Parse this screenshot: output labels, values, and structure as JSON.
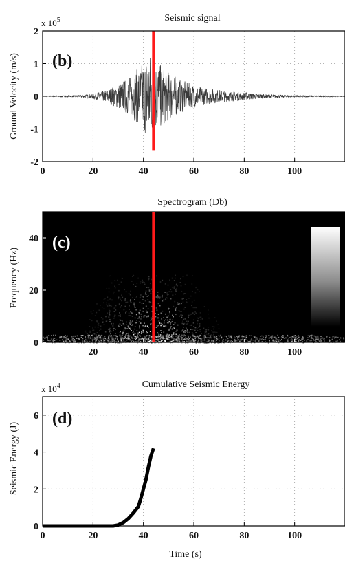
{
  "figure": {
    "colors": {
      "marker": "#ff1a1a",
      "signal": "#3a3a3a",
      "energy": "#000000",
      "axes": "#000000"
    }
  },
  "chart_data": [
    {
      "type": "line",
      "panel": "(b)",
      "title": "Seismic signal",
      "ylabel": "Ground Velocity (m/s)",
      "xlabel": "",
      "multiplier": {
        "base": "x 10",
        "exponent": "5"
      },
      "xlim": [
        0,
        120
      ],
      "ylim": [
        -2,
        2
      ],
      "xticks": [
        0,
        20,
        40,
        60,
        80,
        100
      ],
      "yticks": [
        -2,
        -1,
        0,
        1,
        2
      ],
      "grid": "dotted",
      "marker_x": 44,
      "envelope": {
        "x": [
          0,
          15,
          20,
          25,
          30,
          35,
          40,
          42,
          45,
          50,
          55,
          60,
          65,
          70,
          75,
          80,
          85,
          90,
          95,
          100,
          110,
          120
        ],
        "amplitude": [
          0.01,
          0.03,
          0.08,
          0.18,
          0.38,
          0.62,
          1.05,
          1.4,
          1.1,
          0.75,
          0.5,
          0.35,
          0.25,
          0.2,
          0.15,
          0.12,
          0.08,
          0.06,
          0.04,
          0.03,
          0.02,
          0.01
        ]
      }
    },
    {
      "type": "heatmap",
      "panel": "(c)",
      "title": "Spectrogram (Db)",
      "ylabel": "Frequency (Hz)",
      "xlabel": "",
      "xlim": [
        0,
        120
      ],
      "ylim": [
        0,
        50
      ],
      "xticks": [
        20,
        40,
        60,
        80,
        100
      ],
      "yticks": [
        0,
        20,
        40
      ],
      "marker_x": 44,
      "colorbar": "grayscale"
    },
    {
      "type": "line",
      "panel": "(d)",
      "title": "Cumulative Seismic Energy",
      "ylabel": "Seismic Energy (J)",
      "xlabel": "Time (s)",
      "multiplier": {
        "base": "x 10",
        "exponent": "4"
      },
      "xlim": [
        0,
        120
      ],
      "ylim": [
        0,
        7
      ],
      "xticks": [
        0,
        20,
        40,
        60,
        80,
        100
      ],
      "yticks": [
        0,
        2,
        4,
        6
      ],
      "grid": "dotted",
      "series": [
        {
          "x": [
            0,
            10,
            20,
            28,
            30,
            32,
            34,
            36,
            38,
            39,
            40,
            41,
            42,
            43,
            44
          ],
          "y": [
            0,
            0,
            0,
            0,
            0.05,
            0.18,
            0.4,
            0.7,
            1.05,
            1.5,
            2.0,
            2.5,
            3.2,
            3.8,
            4.2
          ]
        }
      ]
    }
  ]
}
